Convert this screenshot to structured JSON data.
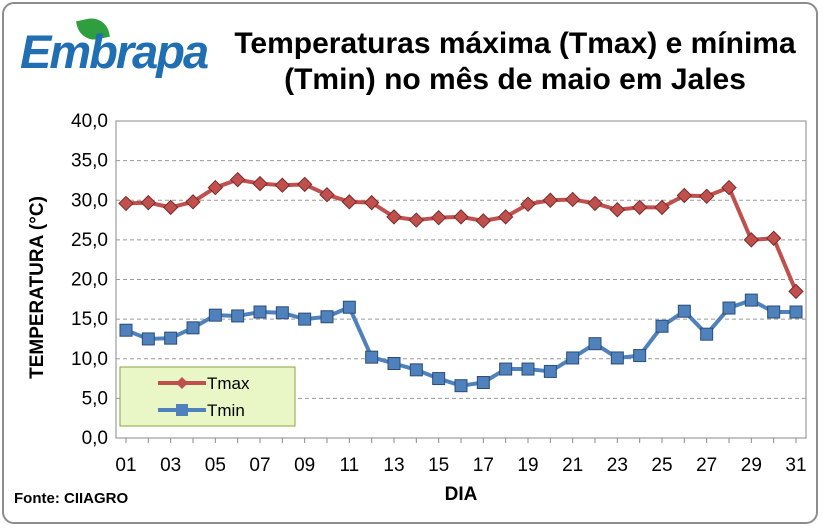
{
  "brand": {
    "logo_text": "Embrapa"
  },
  "title_line1": "Temperaturas máxima (Tmax) e mínima",
  "title_line2": "(Tmin) no mês de maio em Jales",
  "source": "Fonte: CIIAGRO",
  "colors": {
    "tmax": "#c0504d",
    "tmin": "#4f81bd",
    "gridline": "#9a9a9a",
    "legend_bg": "#e9f7c6",
    "legend_border": "#8aa640"
  },
  "chart_data": {
    "type": "line",
    "title": "Temperaturas máxima (Tmax) e mínima (Tmin) no mês de maio em Jales",
    "xlabel": "DIA",
    "ylabel": "TEMPERATURA (°C)",
    "ylim": [
      0,
      40
    ],
    "y_ticks": [
      "0,0",
      "5,0",
      "10,0",
      "15,0",
      "20,0",
      "25,0",
      "30,0",
      "35,0",
      "40,0"
    ],
    "x": [
      1,
      2,
      3,
      4,
      5,
      6,
      7,
      8,
      9,
      10,
      11,
      12,
      13,
      14,
      15,
      16,
      17,
      18,
      19,
      20,
      21,
      22,
      23,
      24,
      25,
      26,
      27,
      28,
      29,
      30,
      31
    ],
    "x_tick_labels": [
      "01",
      "03",
      "05",
      "07",
      "09",
      "11",
      "13",
      "15",
      "17",
      "19",
      "21",
      "23",
      "25",
      "27",
      "29",
      "31"
    ],
    "grid": true,
    "legend_position": "bottom-left",
    "series": [
      {
        "name": "Tmax",
        "marker": "diamond",
        "values": [
          29.6,
          29.7,
          29.1,
          29.8,
          31.6,
          32.6,
          32.1,
          31.9,
          32.0,
          30.7,
          29.8,
          29.7,
          27.9,
          27.5,
          27.8,
          27.9,
          27.4,
          27.9,
          29.5,
          30.0,
          30.1,
          29.6,
          28.8,
          29.1,
          29.1,
          30.6,
          30.5,
          31.6,
          25.0,
          25.2,
          18.5
        ]
      },
      {
        "name": "Tmin",
        "marker": "square",
        "values": [
          13.6,
          12.5,
          12.6,
          13.9,
          15.5,
          15.4,
          15.9,
          15.8,
          15.0,
          15.3,
          16.5,
          10.2,
          9.4,
          8.6,
          7.5,
          6.6,
          7.0,
          8.7,
          8.7,
          8.4,
          10.1,
          11.9,
          10.1,
          10.4,
          14.1,
          16.0,
          13.1,
          16.4,
          17.4,
          15.9,
          15.9
        ]
      }
    ]
  }
}
